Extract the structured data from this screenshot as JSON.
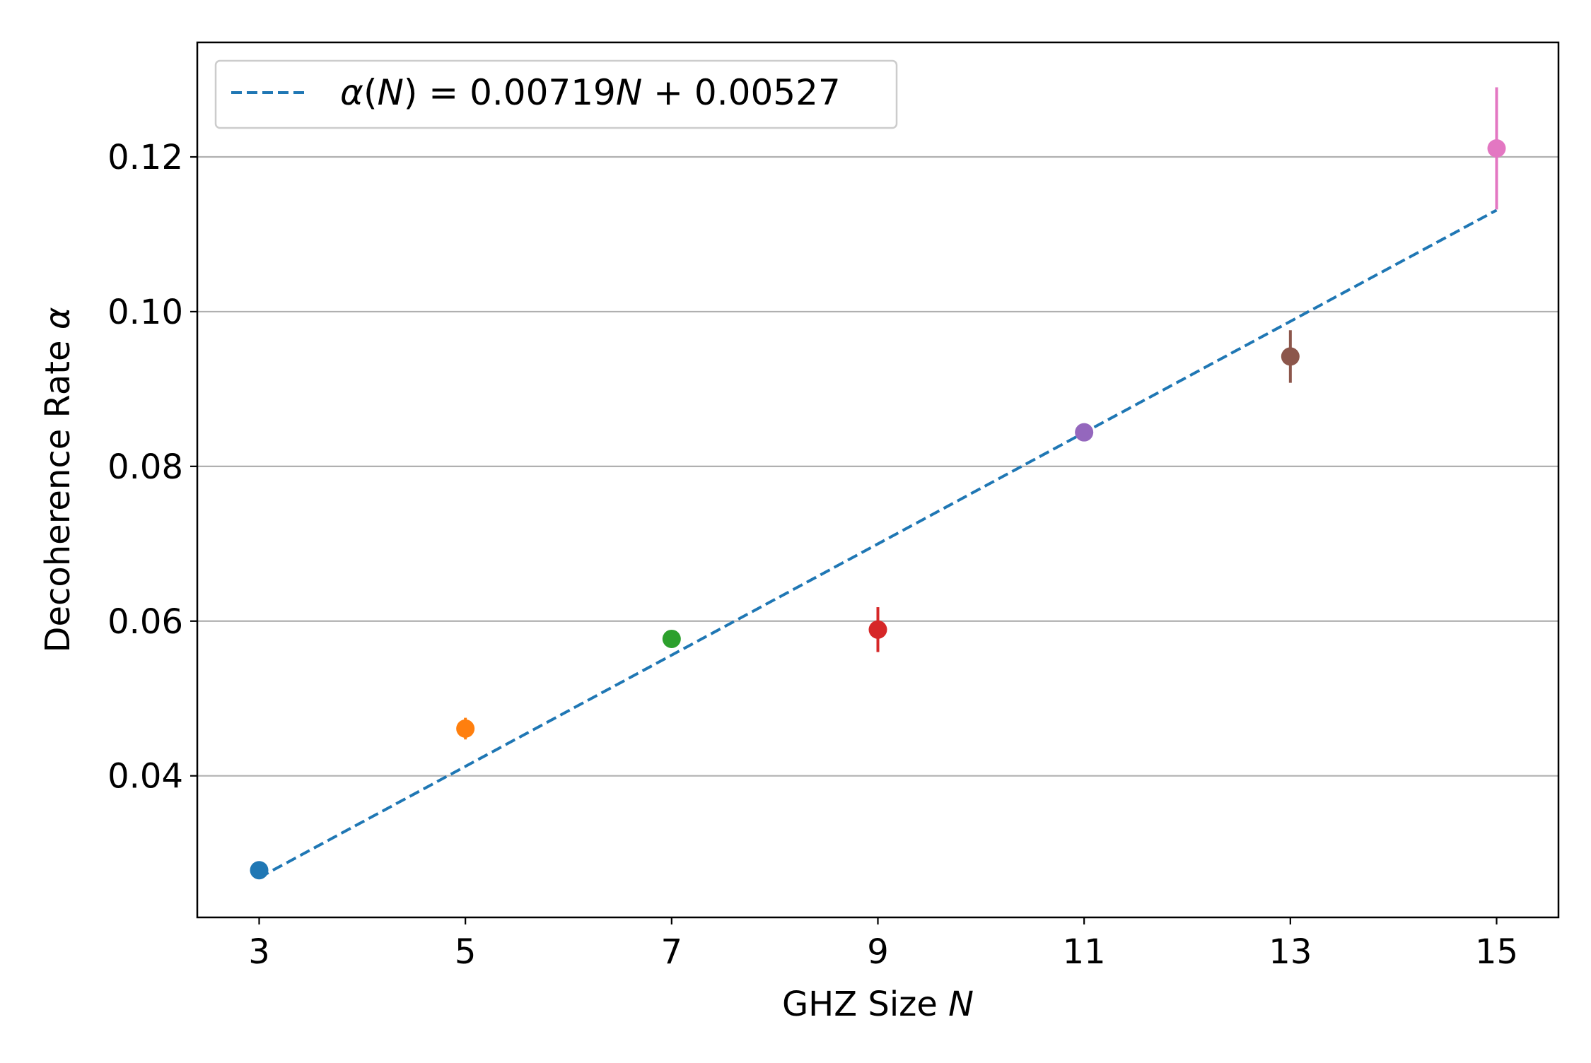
{
  "chart_data": {
    "type": "scatter",
    "xlabel_text": "GHZ Size ",
    "xlabel_var": "N",
    "ylabel_text": "Decoherence Rate ",
    "ylabel_var": "α",
    "xlim": [
      2.4,
      15.6
    ],
    "ylim": [
      0.0217,
      0.1348
    ],
    "x_ticks": [
      3,
      5,
      7,
      9,
      11,
      13,
      15
    ],
    "x_tick_labels": [
      "3",
      "5",
      "7",
      "9",
      "11",
      "13",
      "15"
    ],
    "y_ticks": [
      0.04,
      0.06,
      0.08,
      0.1,
      0.12
    ],
    "y_tick_labels": [
      "0.04",
      "0.06",
      "0.08",
      "0.10",
      "0.12"
    ],
    "grid": "y",
    "legend_position": "top-left",
    "points": [
      {
        "x": 3,
        "y": 0.0278,
        "err": 0.0006,
        "color": "#1f77b4"
      },
      {
        "x": 5,
        "y": 0.0461,
        "err": 0.0014,
        "color": "#ff7f0e"
      },
      {
        "x": 7,
        "y": 0.0577,
        "err": 0.0009,
        "color": "#2ca02c"
      },
      {
        "x": 9,
        "y": 0.0589,
        "err": 0.0029,
        "color": "#d62728"
      },
      {
        "x": 11,
        "y": 0.0844,
        "err": 0.0006,
        "color": "#9467bd"
      },
      {
        "x": 13,
        "y": 0.0942,
        "err": 0.0034,
        "color": "#8c564b"
      },
      {
        "x": 15,
        "y": 0.1211,
        "err": 0.0079,
        "color": "#e377c2"
      }
    ],
    "fit": {
      "label_parts": [
        "α",
        "(",
        "N",
        ") = 0.00719",
        "N",
        " + 0.00527"
      ],
      "slope": 0.00719,
      "intercept": 0.00527,
      "x_range": [
        3,
        15
      ],
      "color": "#1f77b4",
      "style": "dashed"
    }
  }
}
